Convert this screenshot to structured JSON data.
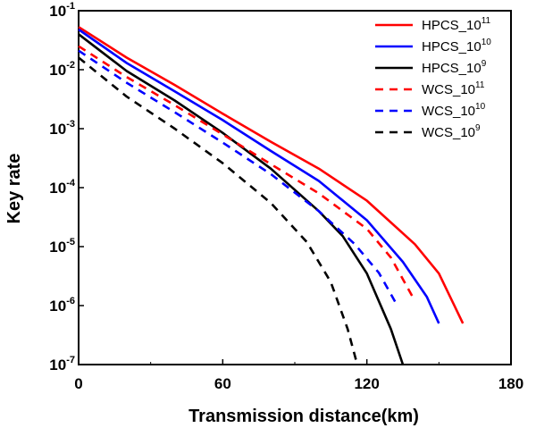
{
  "chart_data": {
    "type": "line",
    "xlabel": "Transmission distance(km)",
    "ylabel": "Key rate",
    "x_scale": "linear",
    "y_scale": "log",
    "xlim": [
      0,
      180
    ],
    "ylim": [
      1e-07,
      0.1
    ],
    "x_ticks": [
      "0",
      "60",
      "120",
      "180"
    ],
    "y_ticks": [
      {
        "base": "10",
        "exp": "-1",
        "value": 0.1
      },
      {
        "base": "10",
        "exp": "-2",
        "value": 0.01
      },
      {
        "base": "10",
        "exp": "-3",
        "value": 0.001
      },
      {
        "base": "10",
        "exp": "-4",
        "value": 0.0001
      },
      {
        "base": "10",
        "exp": "-5",
        "value": 1e-05
      },
      {
        "base": "10",
        "exp": "-6",
        "value": 1e-06
      },
      {
        "base": "10",
        "exp": "-7",
        "value": 1e-07
      }
    ],
    "legend_position": "top-right",
    "series": [
      {
        "name": "HPCS_10",
        "name_exp": "11",
        "color": "#ff0000",
        "dash": "solid",
        "x": [
          0,
          20,
          40,
          60,
          80,
          100,
          120,
          140,
          150,
          160
        ],
        "y": [
          0.053,
          0.016,
          0.0055,
          0.0018,
          0.0006,
          0.00021,
          6e-05,
          1.1e-05,
          3.5e-06,
          5e-07
        ]
      },
      {
        "name": "HPCS_10",
        "name_exp": "10",
        "color": "#0000ff",
        "dash": "solid",
        "x": [
          0,
          20,
          40,
          60,
          80,
          100,
          120,
          135,
          145,
          150
        ],
        "y": [
          0.048,
          0.013,
          0.0043,
          0.0014,
          0.00042,
          0.00013,
          2.8e-05,
          5.5e-06,
          1.4e-06,
          5e-07
        ]
      },
      {
        "name": "HPCS_10",
        "name_exp": "9",
        "color": "#000000",
        "dash": "solid",
        "x": [
          0,
          20,
          40,
          60,
          80,
          100,
          110,
          120,
          130,
          135
        ],
        "y": [
          0.04,
          0.0095,
          0.003,
          0.00085,
          0.00021,
          4e-05,
          1.5e-05,
          3.5e-06,
          4e-07,
          1e-07
        ]
      },
      {
        "name": "WCS_10",
        "name_exp": "11",
        "color": "#ff0000",
        "dash": "dashed",
        "x": [
          0,
          20,
          40,
          60,
          80,
          100,
          120,
          130,
          140
        ],
        "y": [
          0.025,
          0.0075,
          0.0025,
          0.0008,
          0.00025,
          8e-05,
          2e-05,
          6.5e-06,
          1.2e-06
        ]
      },
      {
        "name": "WCS_10",
        "name_exp": "10",
        "color": "#0000ff",
        "dash": "dashed",
        "x": [
          0,
          20,
          40,
          60,
          80,
          100,
          115,
          125,
          133
        ],
        "y": [
          0.021,
          0.006,
          0.0019,
          0.00058,
          0.00017,
          4e-05,
          1.1e-05,
          3.6e-06,
          9.5e-07
        ]
      },
      {
        "name": "WCS_10",
        "name_exp": "9",
        "color": "#000000",
        "dash": "dashed",
        "x": [
          0,
          20,
          40,
          60,
          80,
          95,
          105,
          112,
          116
        ],
        "y": [
          0.016,
          0.0035,
          0.001,
          0.00026,
          5.5e-05,
          1.2e-05,
          2.5e-06,
          4e-07,
          1e-07
        ]
      }
    ]
  }
}
